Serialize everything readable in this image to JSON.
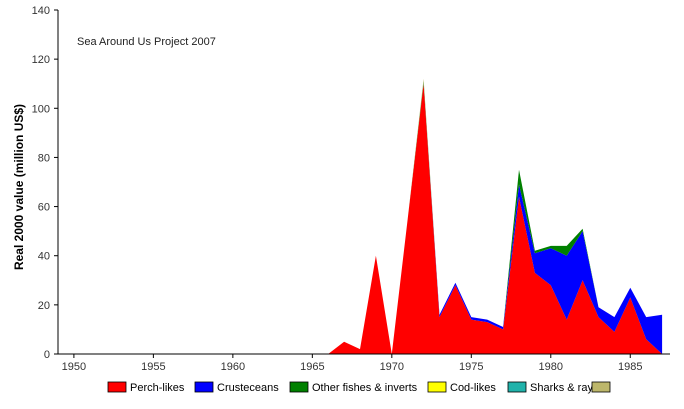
{
  "chart_data": {
    "type": "area",
    "stacked": true,
    "annotation": "Sea Around Us Project 2007",
    "xlabel": "",
    "ylabel": "Real 2000 value (million US$)",
    "xlim": [
      1949,
      1987.5
    ],
    "ylim": [
      0,
      140
    ],
    "xticks": [
      1950,
      1955,
      1960,
      1965,
      1970,
      1975,
      1980,
      1985
    ],
    "yticks": [
      0,
      20,
      40,
      60,
      80,
      100,
      120,
      140
    ],
    "grid": false,
    "legend_position": "bottom",
    "x": [
      1950,
      1951,
      1952,
      1953,
      1954,
      1955,
      1956,
      1957,
      1958,
      1959,
      1960,
      1961,
      1962,
      1963,
      1964,
      1965,
      1966,
      1967,
      1968,
      1969,
      1970,
      1971,
      1972,
      1973,
      1974,
      1975,
      1976,
      1977,
      1978,
      1979,
      1980,
      1981,
      1982,
      1983,
      1984,
      1985,
      1986,
      1987
    ],
    "series": [
      {
        "name": "Perch-likes",
        "color": "#ff0000",
        "values": [
          0,
          0,
          0,
          0,
          0,
          0,
          0,
          0,
          0,
          0,
          0,
          0,
          0,
          0,
          0,
          0,
          0,
          5,
          2,
          40,
          0,
          55,
          110,
          15,
          28,
          14,
          13,
          10,
          64,
          33,
          28,
          14,
          30,
          15,
          9,
          23,
          6,
          0
        ]
      },
      {
        "name": "Crusteceans",
        "color": "#0000ff",
        "values": [
          0,
          0,
          0,
          0,
          0,
          0,
          0,
          0,
          0,
          0,
          0,
          0,
          0,
          0,
          0,
          0,
          0,
          0,
          0,
          0,
          0,
          0,
          0,
          1,
          1,
          1,
          1,
          1,
          5,
          8,
          15,
          26,
          20,
          4,
          6,
          4,
          9,
          16
        ]
      },
      {
        "name": "Other fishes & inverts",
        "color": "#008000",
        "values": [
          0,
          0,
          0,
          0,
          0,
          0,
          0,
          0,
          0,
          0,
          0,
          0,
          0,
          0,
          0,
          0,
          0,
          0,
          0,
          0,
          0,
          0,
          1,
          0,
          0,
          0,
          0,
          0,
          6,
          1,
          1,
          4,
          1,
          0,
          0,
          0,
          0,
          0
        ]
      },
      {
        "name": "Cod-likes",
        "color": "#ffff00",
        "values": [
          0,
          0,
          0,
          0,
          0,
          0,
          0,
          0,
          0,
          0,
          0,
          0,
          0,
          0,
          0,
          0,
          0,
          0,
          0,
          0,
          0,
          0,
          0,
          0,
          0,
          0,
          0,
          0,
          0,
          0,
          0,
          0,
          0,
          0,
          0,
          0,
          0,
          0
        ]
      },
      {
        "name": "Sharks & rays",
        "color": "#20b2aa",
        "values": [
          0,
          0,
          0,
          0,
          0,
          0,
          0,
          0,
          0,
          0,
          0,
          0,
          0,
          0,
          0,
          0,
          0,
          0,
          0,
          0,
          0,
          0,
          0,
          0,
          0,
          0,
          0,
          0,
          0,
          0,
          0,
          0,
          0,
          0,
          0,
          0,
          0,
          0
        ]
      },
      {
        "name": "",
        "color": "#bdb76b",
        "values": [
          0,
          0,
          0,
          0,
          0,
          0,
          0,
          0,
          0,
          0,
          0,
          0,
          0,
          0,
          0,
          0,
          0,
          0,
          0,
          0,
          0,
          0,
          1,
          0,
          0,
          0,
          0,
          0,
          0,
          0,
          0,
          0,
          0,
          0,
          0,
          0,
          0,
          0
        ]
      }
    ]
  }
}
